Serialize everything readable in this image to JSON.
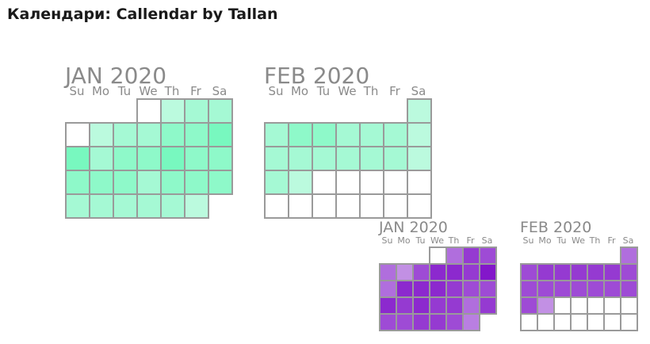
{
  "title": "Календари: Callendar by Tallan",
  "calendars": [
    {
      "id": "green-jan",
      "month_label": "JAN 2020",
      "weekdays": [
        "Su",
        "Mo",
        "Tu",
        "We",
        "Th",
        "Fr",
        "Sa"
      ],
      "start_weekday": 3,
      "days": 31,
      "empty_color": "#ffffff",
      "intensities": [
        0,
        0.2,
        0.4,
        0.4,
        0,
        0.2,
        0.4,
        0.4,
        0.6,
        0.6,
        0.8,
        0.8,
        0.4,
        0.6,
        0.6,
        0.8,
        0.6,
        0.6,
        0.6,
        0.6,
        0.6,
        0.4,
        0.6,
        0.6,
        0.6,
        0.4,
        0.4,
        0.4,
        0.4,
        0.4,
        0.2
      ]
    },
    {
      "id": "green-feb",
      "month_label": "FEB 2020",
      "weekdays": [
        "Su",
        "Mo",
        "Tu",
        "We",
        "Th",
        "Fr",
        "Sa"
      ],
      "start_weekday": 6,
      "days": 29,
      "empty_color": "#ffffff",
      "intensities": [
        0.2,
        0.4,
        0.6,
        0.6,
        0.4,
        0.4,
        0.4,
        0.2,
        0.4,
        0.4,
        0.4,
        0.4,
        0.4,
        0.4,
        0.2,
        0.4,
        0.2,
        null,
        null,
        null,
        null,
        null,
        null,
        null,
        null,
        null,
        null,
        null,
        null
      ]
    },
    {
      "id": "purple-jan",
      "month_label": "JAN 2020",
      "weekdays": [
        "Su",
        "Mo",
        "Tu",
        "We",
        "Th",
        "Fr",
        "Sa"
      ],
      "start_weekday": 3,
      "days": 31,
      "empty_color": "#ffffff",
      "intensities": [
        0,
        0.4,
        0.7,
        0.6,
        0.4,
        0.2,
        0.6,
        0.8,
        0.8,
        0.7,
        0.9,
        0.4,
        0.8,
        0.8,
        0.8,
        0.7,
        0.6,
        0.6,
        0.8,
        0.7,
        0.8,
        0.7,
        0.7,
        0.4,
        0.7,
        0.6,
        0.6,
        0.7,
        0.7,
        0.6,
        0.3
      ]
    },
    {
      "id": "purple-feb",
      "month_label": "FEB 2020",
      "weekdays": [
        "Su",
        "Mo",
        "Tu",
        "We",
        "Th",
        "Fr",
        "Sa"
      ],
      "start_weekday": 6,
      "days": 29,
      "empty_color": "#ffffff",
      "intensities": [
        0.4,
        0.6,
        0.7,
        0.7,
        0.7,
        0.7,
        0.7,
        0.6,
        0.6,
        0.6,
        0.6,
        0.6,
        0.6,
        0.6,
        0.6,
        0.6,
        0.2,
        null,
        null,
        null,
        null,
        null,
        null,
        null,
        null,
        null,
        null,
        null,
        null
      ]
    }
  ],
  "colors": {
    "green_light": "#d2fbe8",
    "green_dark": "#61f7b5",
    "purple_light": "#d4b3ec",
    "purple_dark": "#7a06c6",
    "grid": "#9a9a9a",
    "label": "#8a8a8a"
  }
}
